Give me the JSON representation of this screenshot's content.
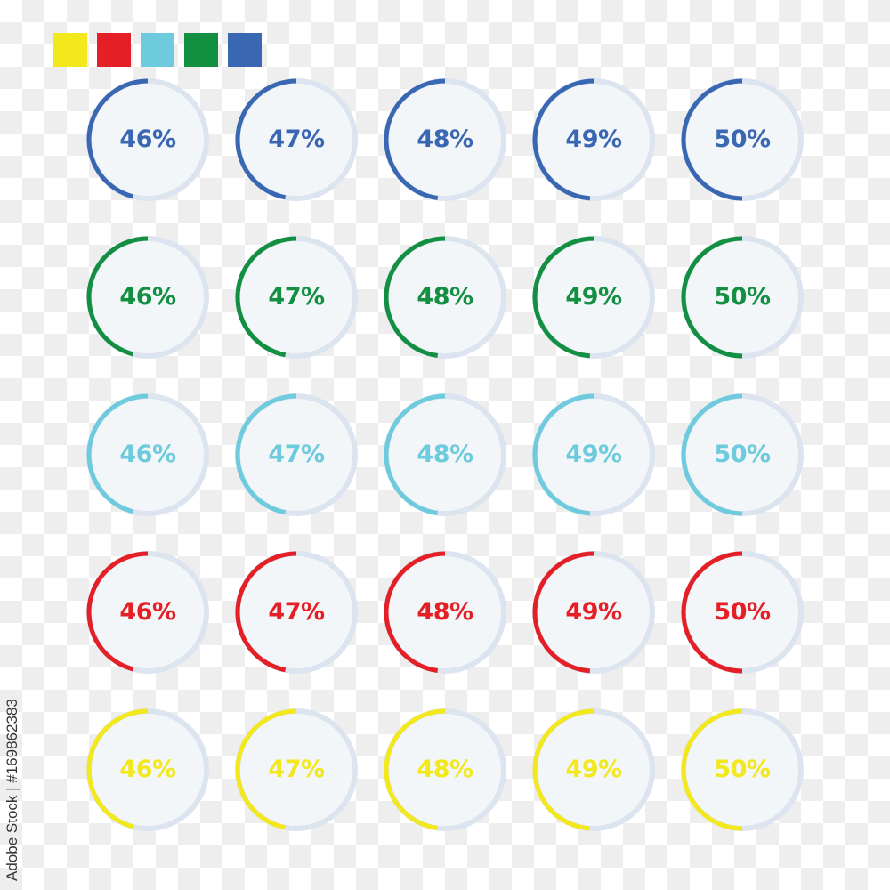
{
  "palette": [
    {
      "name": "yellow",
      "color": "#f2e81c"
    },
    {
      "name": "red",
      "color": "#e41f26"
    },
    {
      "name": "light-blue",
      "color": "#6ecbdd"
    },
    {
      "name": "green",
      "color": "#138f41"
    },
    {
      "name": "blue",
      "color": "#3a67b2"
    }
  ],
  "track_color": "#dce4f0",
  "face_color": "#f3f6f9",
  "rows": [
    {
      "name": "blue",
      "color": "#3a67b2",
      "items": [
        {
          "label": "46%",
          "value": 46
        },
        {
          "label": "47%",
          "value": 47
        },
        {
          "label": "48%",
          "value": 48
        },
        {
          "label": "49%",
          "value": 49
        },
        {
          "label": "50%",
          "value": 50
        }
      ]
    },
    {
      "name": "green",
      "color": "#138f41",
      "items": [
        {
          "label": "46%",
          "value": 46
        },
        {
          "label": "47%",
          "value": 47
        },
        {
          "label": "48%",
          "value": 48
        },
        {
          "label": "49%",
          "value": 49
        },
        {
          "label": "50%",
          "value": 50
        }
      ]
    },
    {
      "name": "light-blue",
      "color": "#6ecbdd",
      "items": [
        {
          "label": "46%",
          "value": 46
        },
        {
          "label": "47%",
          "value": 47
        },
        {
          "label": "48%",
          "value": 48
        },
        {
          "label": "49%",
          "value": 49
        },
        {
          "label": "50%",
          "value": 50
        }
      ]
    },
    {
      "name": "red",
      "color": "#e41f26",
      "items": [
        {
          "label": "46%",
          "value": 46
        },
        {
          "label": "47%",
          "value": 47
        },
        {
          "label": "48%",
          "value": 48
        },
        {
          "label": "49%",
          "value": 49
        },
        {
          "label": "50%",
          "value": 50
        }
      ]
    },
    {
      "name": "yellow",
      "color": "#f2e81c",
      "items": [
        {
          "label": "46%",
          "value": 46
        },
        {
          "label": "47%",
          "value": 47
        },
        {
          "label": "48%",
          "value": 48
        },
        {
          "label": "49%",
          "value": 49
        },
        {
          "label": "50%",
          "value": 50
        }
      ]
    }
  ],
  "stock_id": "Adobe Stock | #169862383"
}
